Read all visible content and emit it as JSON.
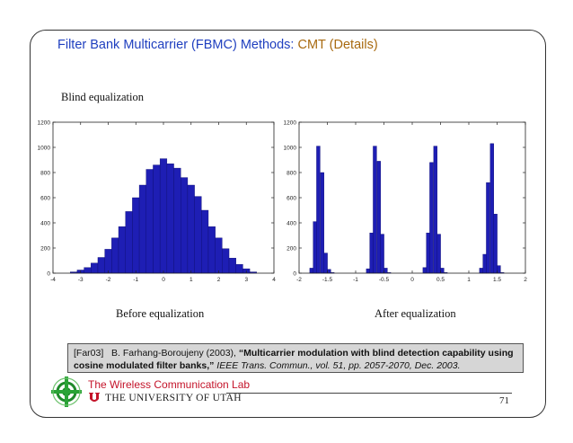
{
  "slide": {
    "title_prefix": "Filter Bank Multicarrier (FBMC) Methods: ",
    "title_highlight": "CMT (Details)",
    "subtitle": "Blind equalization",
    "caption_left": "Before equalization",
    "caption_right": "After equalization",
    "reference": {
      "tag": "[Far03]",
      "authors": "B. Farhang-Boroujeny (2003), ",
      "title": "“Multicarrier modulation with blind detection capability using cosine modulated filter banks,”",
      "journal": "IEEE Trans. Commun., vol. 51, pp. 2057-2070, Dec. 2003."
    },
    "footer": {
      "lab": "The Wireless Communication Lab",
      "university": "THE UNIVERSITY OF UTAH",
      "page_number": "71"
    }
  },
  "colors": {
    "title": "#1f3fbf",
    "highlight": "#a86a10",
    "bar": "#1e1eb4",
    "lab": "#c4142a"
  },
  "chart_data": [
    {
      "type": "bar",
      "xlim": [
        -4,
        4
      ],
      "ylim": [
        0,
        1200
      ],
      "xticks": [
        "-4",
        "-3",
        "-2",
        "-1",
        "0",
        "1",
        "2",
        "3",
        "4"
      ],
      "yticks": [
        "0",
        "200",
        "400",
        "600",
        "800",
        "1000",
        "1200"
      ],
      "bin_width": 0.25,
      "x": [
        -3.25,
        -3.0,
        -2.75,
        -2.5,
        -2.25,
        -2.0,
        -1.75,
        -1.5,
        -1.25,
        -1.0,
        -0.75,
        -0.5,
        -0.25,
        0.0,
        0.25,
        0.5,
        0.75,
        1.0,
        1.25,
        1.5,
        1.75,
        2.0,
        2.25,
        2.5,
        2.75,
        3.0,
        3.25
      ],
      "values": [
        10,
        25,
        45,
        80,
        125,
        190,
        280,
        370,
        490,
        600,
        700,
        825,
        860,
        910,
        870,
        835,
        760,
        700,
        610,
        500,
        370,
        280,
        195,
        120,
        70,
        35,
        10
      ]
    },
    {
      "type": "bar",
      "xlim": [
        -2,
        2
      ],
      "ylim": [
        0,
        1200
      ],
      "xticks": [
        "-2",
        "-1.5",
        "-1",
        "-0.5",
        "0",
        "0.5",
        "1",
        "1.5",
        "2"
      ],
      "yticks": [
        "0",
        "200",
        "400",
        "600",
        "800",
        "1000",
        "1200"
      ],
      "bin_width": 0.0625,
      "x": [
        -1.78,
        -1.72,
        -1.66,
        -1.59,
        -1.53,
        -1.47,
        -1.41,
        -0.78,
        -0.72,
        -0.66,
        -0.59,
        -0.53,
        -0.47,
        -0.41,
        0.22,
        0.28,
        0.34,
        0.41,
        0.47,
        0.53,
        0.59,
        1.22,
        1.28,
        1.34,
        1.41,
        1.47,
        1.53,
        1.59
      ],
      "values": [
        40,
        410,
        1010,
        800,
        160,
        30,
        5,
        35,
        320,
        1010,
        890,
        310,
        40,
        5,
        45,
        320,
        880,
        1010,
        310,
        40,
        5,
        40,
        150,
        720,
        1030,
        470,
        60,
        5
      ]
    }
  ]
}
